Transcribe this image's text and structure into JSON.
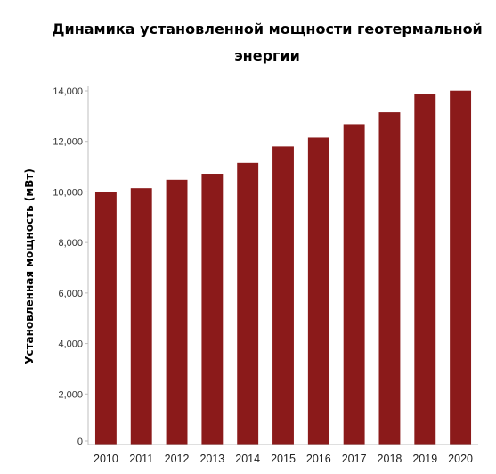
{
  "chart_data": {
    "type": "bar",
    "title": {
      "line1": "Динамика установленной мощности геотермальной",
      "line2": "энергии"
    },
    "xlabel": "",
    "ylabel": "Установленная мощность (мВт)",
    "categories": [
      "2010",
      "2011",
      "2012",
      "2013",
      "2014",
      "2015",
      "2016",
      "2017",
      "2018",
      "2019",
      "2020"
    ],
    "values": [
      10000,
      10150,
      10480,
      10720,
      11150,
      11800,
      12150,
      12680,
      13150,
      13880,
      14010
    ],
    "ylim": [
      0,
      14000
    ],
    "yticks": [
      0,
      2000,
      4000,
      6000,
      8000,
      10000,
      12000,
      14000
    ],
    "ytick_labels": [
      "0",
      "2,000",
      "4,000",
      "6,000",
      "8,000",
      "10,000",
      "12,000",
      "14,000"
    ],
    "grid": false,
    "legend": "none",
    "bar_color": "#8b1a1a",
    "axis_color": "#bfbfbf"
  }
}
